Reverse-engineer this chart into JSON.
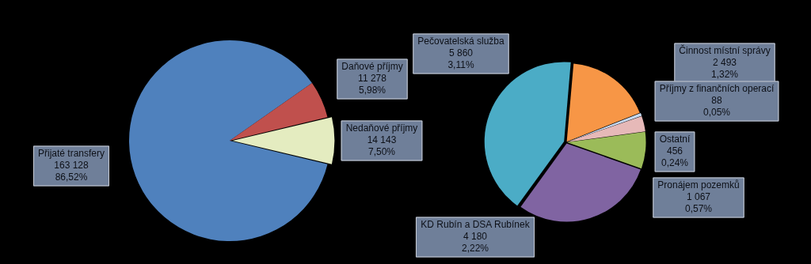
{
  "chart_data": [
    {
      "type": "pie",
      "categories": [
        "Přijaté transfery",
        "Daňové příjmy",
        "Nedaňové příjmy"
      ],
      "values": [
        163128,
        11278,
        14143
      ],
      "colors": [
        "#4f81bd",
        "#c0504d",
        "#e4ecc0"
      ],
      "value_labels": [
        "163 128\n86,52%",
        "11 278\n5,98%",
        "14 143\n7,50%"
      ]
    },
    {
      "type": "pie",
      "categories": [
        "Činnost místní správy",
        "Příjmy z finančních operací",
        "Ostatní",
        "Pronájem pozemků",
        "KD Rubín a DSA Rubínek",
        "Pečovatelská služba"
      ],
      "values": [
        2493,
        88,
        456,
        1067,
        4180,
        5860
      ],
      "colors": [
        "#f79646",
        "#c6d9f1",
        "#e6b9b8",
        "#9bbb59",
        "#8064a2",
        "#4bacc6"
      ],
      "value_labels": [
        "2 493\n1,32%",
        "88\n0,05%",
        "456\n0,24%",
        "1 067\n0,57%",
        "4 180\n2,22%",
        "5 860\n3,11%"
      ]
    }
  ]
}
